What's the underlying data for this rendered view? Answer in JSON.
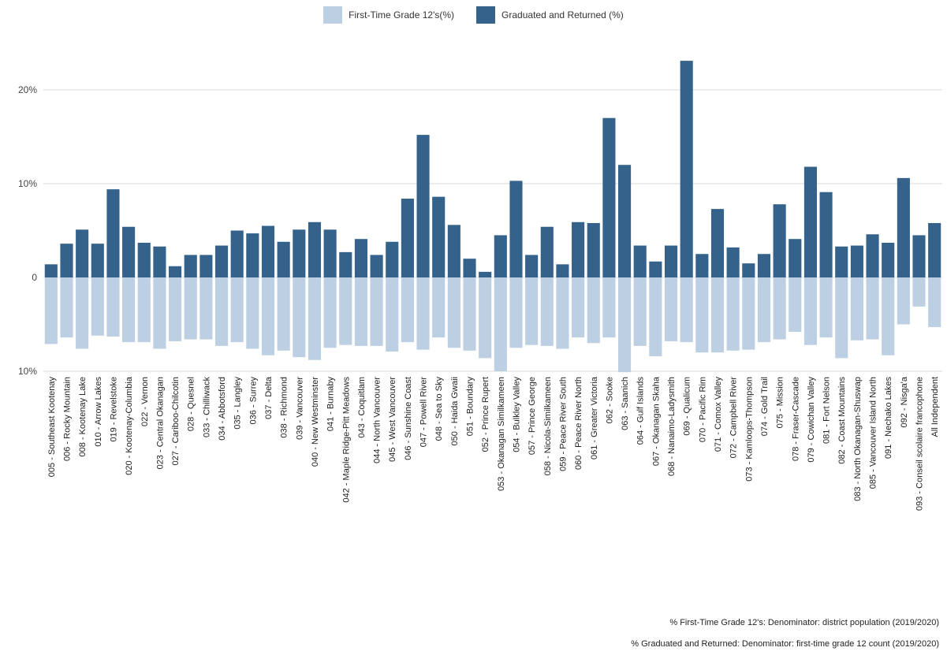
{
  "legend": {
    "first_label": "First-Time Grade 12's(%)",
    "grad_label": "Graduated and Returned (%)"
  },
  "colors": {
    "first": "#bccfe3",
    "grad": "#34628b",
    "grid": "#d9d9d9"
  },
  "footnotes": {
    "first": "% First-Time Grade 12's: Denominator: district population (2019/2020)",
    "grad": "% Graduated and Returned: Denominator: first-time grade 12 count (2019/2020)"
  },
  "chart_data": {
    "type": "bar",
    "title": "",
    "xlabel": "",
    "ylabel": "",
    "ylim": [
      -10,
      24
    ],
    "y_ticks": [
      -10,
      0,
      10,
      20
    ],
    "y_tick_labels": [
      "10%",
      "0",
      "10%",
      "20%"
    ],
    "grid": true,
    "legend_position": "top-center",
    "categories": [
      "005 - Southeast Kootenay",
      "006 - Rocky Mountain",
      "008 - Kootenay Lake",
      "010 - Arrow Lakes",
      "019 - Revelstoke",
      "020 - Kootenay-Columbia",
      "022 - Vernon",
      "023 - Central Okanagan",
      "027 - Cariboo-Chilcotin",
      "028 - Quesnel",
      "033 - Chilliwack",
      "034 - Abbotsford",
      "035 - Langley",
      "036 - Surrey",
      "037 - Delta",
      "038 - Richmond",
      "039 - Vancouver",
      "040 - New Westminster",
      "041 - Burnaby",
      "042 - Maple Ridge-Pitt Meadows",
      "043 - Coquitlam",
      "044 - North Vancouver",
      "045 - West Vancouver",
      "046 - Sunshine Coast",
      "047 - Powell River",
      "048 - Sea to Sky",
      "050 - Haida Gwaii",
      "051 - Boundary",
      "052 - Prince Rupert",
      "053 - Okanagan Similkameen",
      "054 - Bulkley Valley",
      "057 - Prince George",
      "058 - Nicola-Similkameen",
      "059 - Peace River South",
      "060 - Peace River North",
      "061 - Greater Victoria",
      "062 - Sooke",
      "063 - Saanich",
      "064 - Gulf Islands",
      "067 - Okanagan Skaha",
      "068 - Nanaimo-Ladysmith",
      "069 - Qualicum",
      "070 - Pacific Rim",
      "071 - Comox Valley",
      "072 - Campbell River",
      "073 - Kamloops-Thompson",
      "074 - Gold Trail",
      "075 - Mission",
      "078 - Fraser-Cascade",
      "079 - Cowichan Valley",
      "081 - Fort Nelson",
      "082 - Coast Mountains",
      "083 - North Okanagan-Shuswap",
      "085 - Vancouver Island North",
      "091 - Nechako Lakes",
      "092 - Nisga'a",
      "093 - Conseil scolaire francophone",
      "All Independent"
    ],
    "series": [
      {
        "name": "First-Time Grade 12's(%)",
        "values": [
          7.1,
          6.4,
          7.6,
          6.2,
          6.3,
          6.9,
          6.9,
          7.6,
          6.8,
          6.6,
          6.6,
          7.3,
          6.9,
          7.6,
          8.3,
          7.8,
          8.5,
          8.8,
          7.5,
          7.2,
          7.3,
          7.3,
          7.9,
          6.9,
          7.7,
          6.4,
          7.5,
          7.8,
          8.6,
          10.0,
          7.5,
          7.2,
          7.3,
          7.6,
          6.4,
          7.0,
          6.4,
          10.1,
          7.3,
          8.4,
          6.8,
          6.9,
          8.0,
          8.0,
          7.8,
          7.7,
          6.9,
          6.6,
          5.8,
          7.2,
          6.4,
          8.6,
          6.7,
          6.6,
          8.3,
          5.0,
          3.1,
          5.3
        ]
      },
      {
        "name": "Graduated and Returned (%)",
        "values": [
          1.4,
          3.6,
          5.1,
          3.6,
          9.4,
          5.4,
          3.7,
          3.3,
          1.2,
          2.4,
          2.4,
          3.4,
          5.0,
          4.7,
          5.5,
          3.8,
          5.1,
          5.9,
          5.1,
          2.7,
          4.1,
          2.4,
          3.8,
          8.4,
          15.2,
          8.6,
          5.6,
          2.0,
          0.6,
          4.5,
          10.3,
          2.4,
          5.4,
          1.4,
          5.9,
          5.8,
          17.0,
          12.0,
          3.4,
          1.7,
          3.4,
          23.1,
          2.5,
          7.3,
          3.2,
          1.5,
          2.5,
          7.8,
          4.1,
          11.8,
          9.1,
          3.3,
          3.4,
          4.6,
          3.7,
          10.6,
          4.5,
          5.8
        ]
      }
    ]
  }
}
